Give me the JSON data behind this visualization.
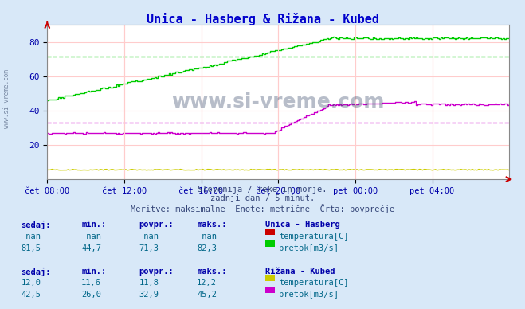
{
  "title": "Unica - Hasberg & Rižana - Kubed",
  "bg_color": "#d8e8f8",
  "plot_bg_color": "#ffffff",
  "grid_color": "#ffcccc",
  "xlabel_color": "#0000aa",
  "title_color": "#0000cc",
  "subtitle_lines": [
    "Slovenija / reke in morje.",
    "zadnji dan / 5 minut.",
    "Meritve: maksimalne  Enote: metrične  Črta: povprečje"
  ],
  "watermark": "www.si-vreme.com",
  "tick_labels": [
    "čet 08:00",
    "čet 12:00",
    "čet 16:00",
    "čet 20:00",
    "pet 00:00",
    "pet 04:00"
  ],
  "tick_positions": [
    0,
    48,
    96,
    144,
    192,
    240
  ],
  "xlim": [
    0,
    288
  ],
  "ylim": [
    0,
    90
  ],
  "yticks": [
    20,
    40,
    60,
    80
  ],
  "hline_green": 71.3,
  "hline_magenta": 32.9,
  "unica_hasberg_pretok_color": "#00cc00",
  "unica_hasberg_temp_color": "#cc0000",
  "rizana_kubed_temp_color": "#cccc00",
  "rizana_kubed_pretok_color": "#cc00cc",
  "table_header_color": "#0000aa",
  "table_value_color": "#006688",
  "station1_name": "Unica - Hasberg",
  "station2_name": "Rižana - Kubed",
  "station1_rows": [
    [
      "-nan",
      "-nan",
      "-nan",
      "-nan",
      "temperatura[C]"
    ],
    [
      "81,5",
      "44,7",
      "71,3",
      "82,3",
      "pretok[m3/s]"
    ]
  ],
  "station2_rows": [
    [
      "12,0",
      "11,6",
      "11,8",
      "12,2",
      "temperatura[C]"
    ],
    [
      "42,5",
      "26,0",
      "32,9",
      "45,2",
      "pretok[m3/s]"
    ]
  ],
  "col_headers": [
    "sedaj:",
    "min.:",
    "povpr.:",
    "maks.:"
  ]
}
